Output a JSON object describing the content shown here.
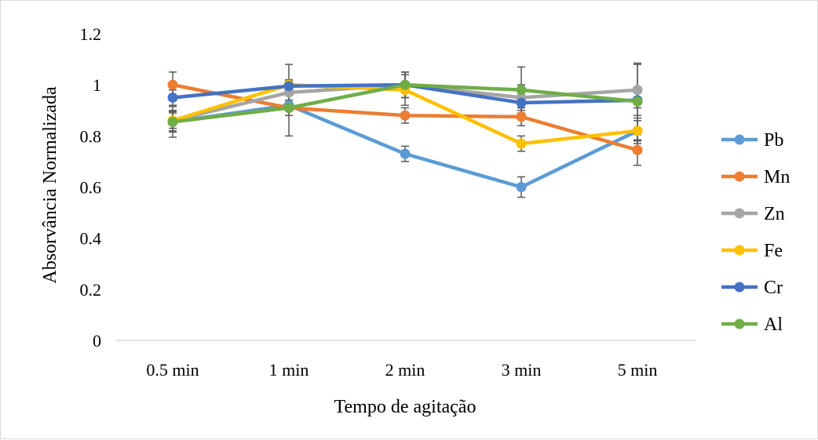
{
  "chart_data": {
    "type": "line",
    "title": "",
    "xlabel": "Tempo de agitação",
    "ylabel": "Absorvância Normalizada",
    "categories": [
      "0.5 min",
      "1 min",
      "2 min",
      "3 min",
      "5 min"
    ],
    "ylim": [
      0,
      1.2
    ],
    "yticks": [
      0,
      0.2,
      0.4,
      0.6,
      0.8,
      1,
      1.2
    ],
    "ytick_labels": [
      "0",
      "0.2",
      "0.4",
      "0.6",
      "0.8",
      "1",
      "1.2"
    ],
    "grid": false,
    "legend_position": "right",
    "series": [
      {
        "name": "Pb",
        "color": "#5B9BD5",
        "values": [
          0.855,
          0.92,
          0.73,
          0.6,
          0.82
        ],
        "errors": [
          0.04,
          0.02,
          0.03,
          0.04,
          0.05
        ]
      },
      {
        "name": "Mn",
        "color": "#ED7D31",
        "values": [
          1.0,
          0.91,
          0.88,
          0.875,
          0.745
        ],
        "errors": [
          0.05,
          0.03,
          0.03,
          0.035,
          0.06
        ]
      },
      {
        "name": "Zn",
        "color": "#A5A5A5",
        "values": [
          0.86,
          0.97,
          1.0,
          0.95,
          0.98
        ],
        "errors": [
          0.04,
          0.03,
          0.05,
          0.05,
          0.1
        ]
      },
      {
        "name": "Fe",
        "color": "#FFC000",
        "values": [
          0.86,
          1.0,
          0.98,
          0.77,
          0.82
        ],
        "errors": [
          0.03,
          0.08,
          0.06,
          0.03,
          0.04
        ]
      },
      {
        "name": "Cr",
        "color": "#4472C4",
        "values": [
          0.95,
          0.995,
          1.0,
          0.93,
          0.94
        ],
        "errors": [
          0.03,
          0.02,
          0.05,
          0.02,
          0.03
        ]
      },
      {
        "name": "Al",
        "color": "#70AD47",
        "values": [
          0.855,
          0.91,
          1.0,
          0.98,
          0.935
        ],
        "errors": [
          0.06,
          0.11,
          0.05,
          0.09,
          0.15
        ]
      }
    ],
    "error_bar_color": "#595959",
    "axis_color": "#d9d9d9"
  }
}
